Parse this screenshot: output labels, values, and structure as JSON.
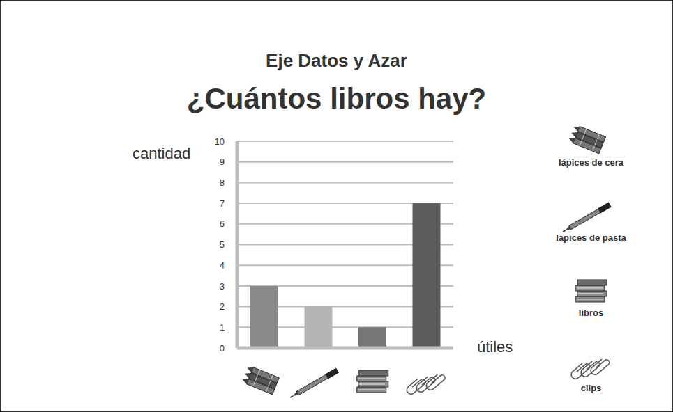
{
  "chart_data": {
    "type": "bar",
    "subtitle": "Eje Datos y Azar",
    "title": "¿Cuántos libros hay?",
    "x_label": "útiles",
    "y_label": "cantidad",
    "categories": [
      "lápices de cera",
      "lápices de pasta",
      "libros",
      "clips"
    ],
    "values": [
      3,
      2,
      1,
      7
    ],
    "colors": [
      "#8a8a8a",
      "#b4b4b4",
      "#767676",
      "#5c5c5c"
    ],
    "ylim": [
      0,
      10
    ],
    "yticks": [
      0,
      1,
      2,
      3,
      4,
      5,
      6,
      7,
      8,
      9,
      10
    ],
    "grid": true,
    "tick_labels": "y"
  }
}
